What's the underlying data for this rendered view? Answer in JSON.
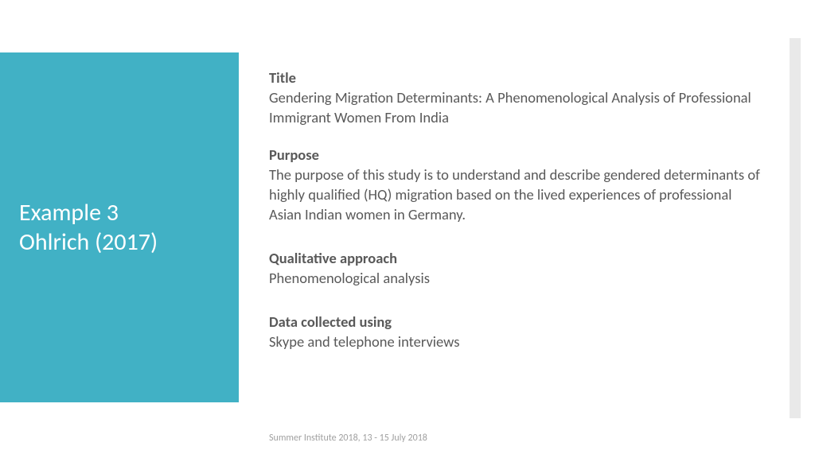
{
  "colors": {
    "panel_bg": "#41b1c5",
    "panel_text": "#ffffff",
    "body_text": "#595959",
    "footer_text": "#a0a0a0",
    "right_bar": "#e9e9e9",
    "page_bg": "#ffffff"
  },
  "left": {
    "line1": "Example 3",
    "line2": "Ohlrich (2017)"
  },
  "sections": {
    "title": {
      "label": "Title",
      "text": " Gendering Migration Determinants: A Phenomenological Analysis of Professional Immigrant Women From India"
    },
    "purpose": {
      "label": "Purpose",
      "text": "The purpose of this study is to understand and describe gendered determinants of highly qualified (HQ) migration based on the lived experiences of professional Asian Indian women in Germany."
    },
    "approach": {
      "label": "Qualitative approach",
      "text": "Phenomenological analysis"
    },
    "data": {
      "label": "Data collected using",
      "text": "Skype and telephone interviews"
    }
  },
  "footer": "Summer Institute 2018, 13 - 15 July 2018"
}
